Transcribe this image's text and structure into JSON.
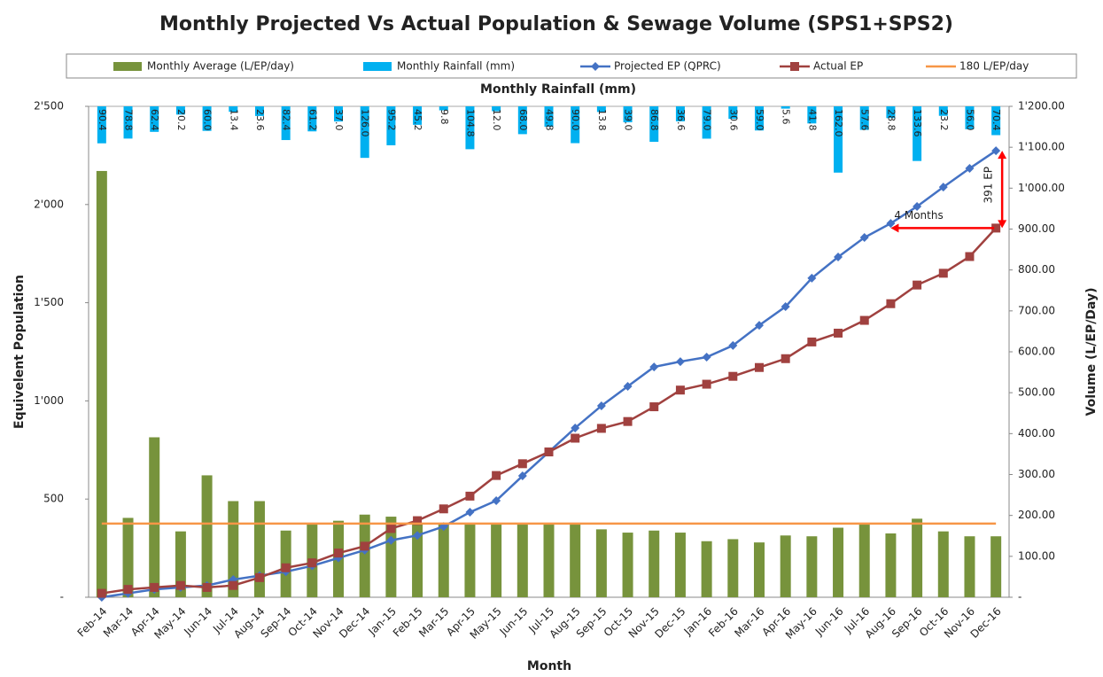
{
  "chart_data": {
    "type": "combo",
    "title": "Monthly Projected Vs Actual Population & Sewage Volume (SPS1+SPS2)",
    "rain_axis_title": "Monthly Rainfall (mm)",
    "x_label": "Month",
    "y_label": "Equivelent Population",
    "y2_label": "Volume (L/EP/Day)",
    "categories": [
      "Feb-14",
      "Mar-14",
      "Apr-14",
      "May-14",
      "Jun-14",
      "Jul-14",
      "Aug-14",
      "Sep-14",
      "Oct-14",
      "Nov-14",
      "Dec-14",
      "Jan-15",
      "Feb-15",
      "Mar-15",
      "Apr-15",
      "May-15",
      "Jun-15",
      "Jul-15",
      "Aug-15",
      "Sep-15",
      "Oct-15",
      "Nov-15",
      "Dec-15",
      "Jan-16",
      "Feb-16",
      "Mar-16",
      "Apr-16",
      "May-16",
      "Jun-16",
      "Jul-16",
      "Aug-16",
      "Sep-16",
      "Oct-16",
      "Nov-16",
      "Dec-16"
    ],
    "ylim": [
      0,
      2500
    ],
    "yticks": [
      {
        "value": 0,
        "label": "-"
      },
      500,
      {
        "value": 1000,
        "label": "1'000"
      },
      {
        "value": 1500,
        "label": "1'500"
      },
      {
        "value": 2000,
        "label": "2'000"
      },
      {
        "value": 2500,
        "label": "2'500"
      }
    ],
    "y2lim": [
      0,
      1200
    ],
    "y2ticks": [
      {
        "value": 0,
        "label": "-"
      },
      {
        "value": 100,
        "label": "100.00"
      },
      {
        "value": 200,
        "label": "200.00"
      },
      {
        "value": 300,
        "label": "300.00"
      },
      {
        "value": 400,
        "label": "400.00"
      },
      {
        "value": 500,
        "label": "500.00"
      },
      {
        "value": 600,
        "label": "600.00"
      },
      {
        "value": 700,
        "label": "700.00"
      },
      {
        "value": 800,
        "label": "800.00"
      },
      {
        "value": 900,
        "label": "900.00"
      },
      {
        "value": 1000,
        "label": "1'000.00"
      },
      {
        "value": 1100,
        "label": "1'100.00"
      },
      {
        "value": 1200,
        "label": "1'200.00"
      }
    ],
    "series": [
      {
        "name": "Monthly Average (L/EP/day)",
        "type": "bar",
        "axis": "y2",
        "color": "#77933c",
        "values": [
          1042,
          194,
          391,
          161,
          298,
          235,
          235,
          163,
          180,
          187,
          202,
          197,
          182,
          178,
          182,
          180,
          180,
          180,
          178,
          166,
          158,
          163,
          158,
          137,
          142,
          134,
          151,
          149,
          170,
          180,
          156,
          192,
          161,
          149,
          149
        ]
      },
      {
        "name": "Monthly Rainfall (mm)",
        "type": "bar",
        "axis": "y2",
        "hanging": true,
        "color": "#00b0f0",
        "values": [
          90.4,
          78.8,
          62.4,
          20.2,
          60,
          13.4,
          23.6,
          82.4,
          61.2,
          37,
          126,
          95.2,
          45.2,
          9.8,
          104.8,
          12,
          68,
          49.8,
          90,
          13.8,
          39,
          86.8,
          36.6,
          79,
          30.6,
          59,
          5.6,
          41.8,
          162,
          57.6,
          28.8,
          133.6,
          23.2,
          56,
          70.4
        ],
        "value_labels": [
          "90.4",
          "78.8",
          "62.4",
          "20.2",
          "60.0",
          "13.4",
          "23.6",
          "82.4",
          "61.2",
          "37.0",
          "126.0",
          "95.2",
          "45.2",
          "9.8",
          "104.8",
          "12.0",
          "68.0",
          "49.8",
          "90.0",
          "13.8",
          "39.0",
          "86.8",
          "36.6",
          "79.0",
          "30.6",
          "59.0",
          "5.6",
          "41.8",
          "162.0",
          "57.6",
          "28.8",
          "133.6",
          "23.2",
          "56.0",
          "70.4"
        ]
      },
      {
        "name": "Projected EP (QPRC)",
        "type": "line",
        "marker": "diamond",
        "color": "#4472c4",
        "values": [
          0,
          20,
          40,
          50,
          60,
          90,
          110,
          130,
          160,
          200,
          240,
          290,
          315,
          360,
          433,
          492,
          618,
          740,
          862,
          975,
          1074,
          1173,
          1200,
          1223,
          1282,
          1385,
          1480,
          1625,
          1733,
          1832,
          1904,
          1990,
          2089,
          2184,
          2274
        ]
      },
      {
        "name": "Actual EP",
        "type": "line",
        "marker": "square",
        "color": "#a0413f",
        "values": [
          20,
          40,
          50,
          60,
          50,
          60,
          100,
          150,
          175,
          225,
          260,
          350,
          390,
          450,
          515,
          620,
          680,
          740,
          810,
          860,
          895,
          970,
          1055,
          1085,
          1125,
          1170,
          1215,
          1300,
          1345,
          1410,
          1495,
          1590,
          1650,
          1735,
          1880
        ]
      },
      {
        "name": "180 L/EP/day",
        "type": "hline",
        "axis": "y2",
        "color": "#f79646",
        "value": 180
      }
    ],
    "annotations": [
      {
        "text": "391 EP",
        "color": "#ff0000"
      },
      {
        "text": "4 Months",
        "color": "#ff0000"
      }
    ]
  }
}
